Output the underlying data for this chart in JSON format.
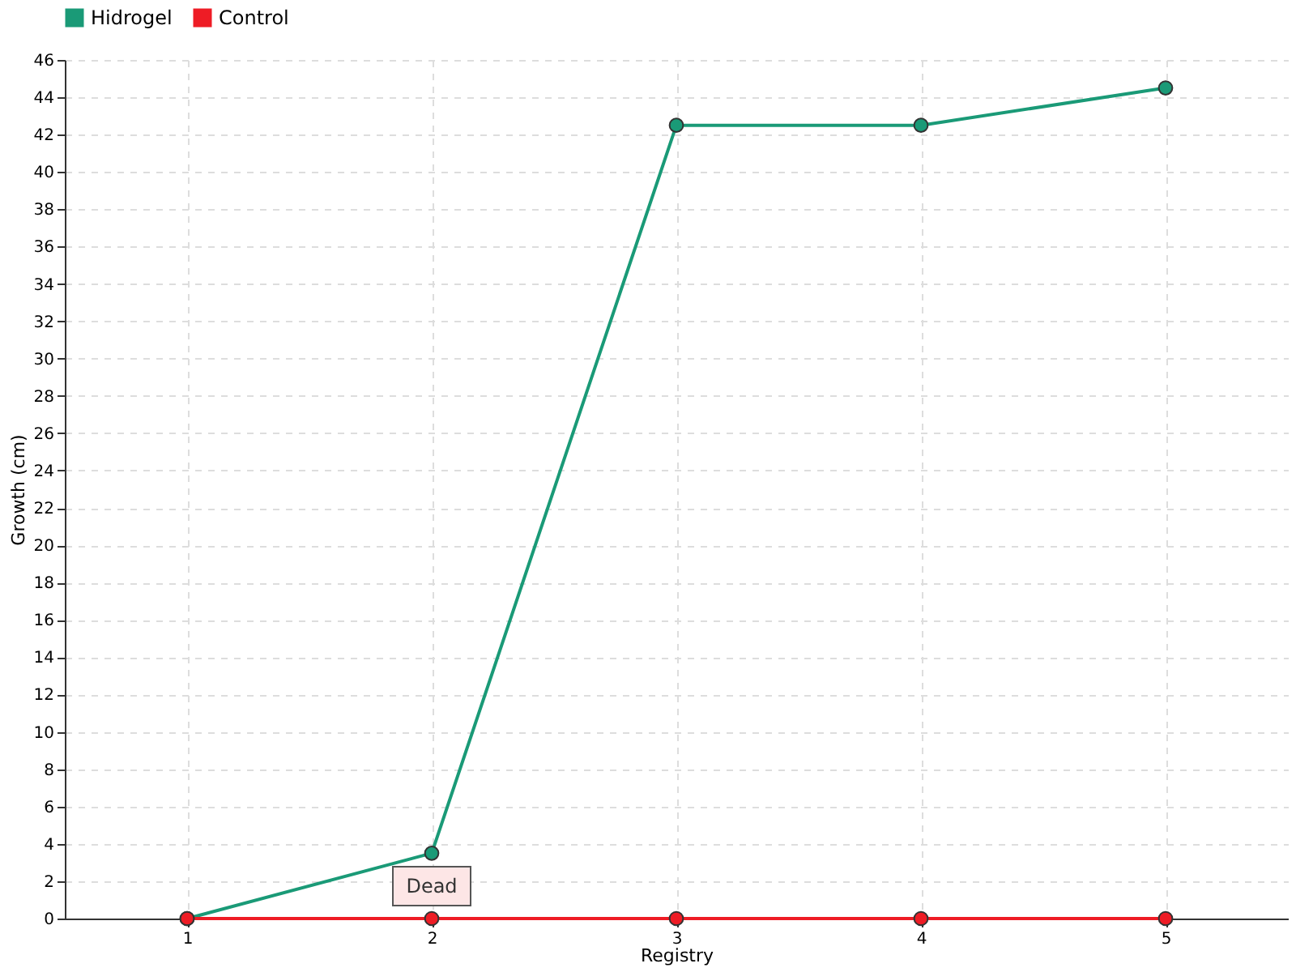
{
  "chart_data": {
    "type": "line",
    "xlabel": "Registry",
    "ylabel": "Growth (cm)",
    "categories": [
      "1",
      "2",
      "3",
      "4",
      "5"
    ],
    "series": [
      {
        "name": "Hidrogel",
        "color": "#1a9a77",
        "values": [
          0,
          3.5,
          42.5,
          42.5,
          44.5
        ]
      },
      {
        "name": "Control",
        "color": "#ee1c25",
        "values": [
          0,
          0,
          0,
          0,
          0
        ]
      }
    ],
    "ylim": [
      0,
      46
    ],
    "yticks": [
      0,
      2,
      4,
      6,
      8,
      10,
      12,
      14,
      16,
      18,
      20,
      22,
      24,
      26,
      28,
      30,
      32,
      34,
      36,
      38,
      40,
      42,
      44,
      46
    ],
    "annotations": [
      {
        "text": "Dead",
        "x": "2",
        "y": 0
      }
    ],
    "grid": true,
    "legend": "top left",
    "marker": "circle"
  }
}
